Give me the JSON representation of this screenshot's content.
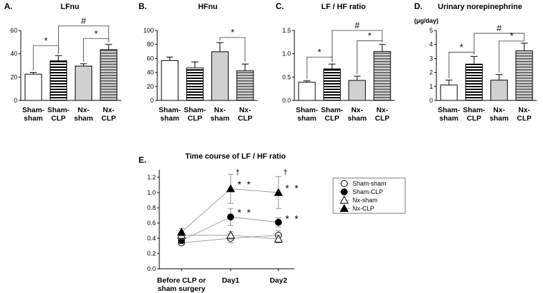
{
  "figure": {
    "units_label": "(μg/day)"
  },
  "chart_data": [
    {
      "panel": "A.",
      "type": "bar",
      "title": "LFnu",
      "categories": [
        [
          "Sham-",
          "sham"
        ],
        [
          "Sham-",
          "CLP"
        ],
        [
          "Nx-",
          "sham"
        ],
        [
          "Nx-",
          "CLP"
        ]
      ],
      "values": [
        22.5,
        34,
        29.5,
        43.5
      ],
      "errors": [
        1.5,
        4.5,
        2,
        4.5
      ],
      "fills": [
        "white",
        "hstripe",
        "gray",
        "hstripe-gray"
      ],
      "ylim": [
        0,
        60
      ],
      "yticks": [
        "0",
        "20",
        "40",
        "60"
      ],
      "ytick_values": [
        0,
        20,
        40,
        60
      ],
      "brackets": [
        {
          "from": 0,
          "to": 1,
          "level": 47,
          "label": "*"
        },
        {
          "from": 2,
          "to": 3,
          "level": 53,
          "label": "*"
        },
        {
          "from": 1,
          "to": 3,
          "level": 64,
          "label": "#"
        }
      ]
    },
    {
      "panel": "B.",
      "type": "bar",
      "title": "HFnu",
      "categories": [
        [
          "Sham-",
          "sham"
        ],
        [
          "Sham-",
          "CLP"
        ],
        [
          "Nx-",
          "sham"
        ],
        [
          "Nx-",
          "CLP"
        ]
      ],
      "values": [
        57,
        46.5,
        69.5,
        42.5
      ],
      "errors": [
        5,
        8.5,
        13,
        9.5
      ],
      "fills": [
        "white",
        "hstripe",
        "gray",
        "hstripe-gray"
      ],
      "ylim": [
        0,
        100
      ],
      "yticks": [
        "0",
        "20",
        "40",
        "60",
        "80",
        "100"
      ],
      "ytick_values": [
        0,
        20,
        40,
        60,
        80,
        100
      ],
      "brackets": [
        {
          "from": 2,
          "to": 3,
          "level": 90,
          "label": "*"
        }
      ]
    },
    {
      "panel": "C.",
      "type": "bar",
      "title": "LF / HF ratio",
      "categories": [
        [
          "Sham-",
          "sham"
        ],
        [
          "Sham-",
          "CLP"
        ],
        [
          "Nx-",
          "sham"
        ],
        [
          "Nx-",
          "CLP"
        ]
      ],
      "values": [
        0.39,
        0.68,
        0.43,
        1.05
      ],
      "errors": [
        0.03,
        0.1,
        0.09,
        0.15
      ],
      "fills": [
        "white",
        "hstripe",
        "gray",
        "hstripe-gray"
      ],
      "ylim": [
        0,
        1.5
      ],
      "yticks": [
        "0.0",
        "0.5",
        "1.0",
        "1.5"
      ],
      "ytick_values": [
        0,
        0.5,
        1.0,
        1.5
      ],
      "brackets": [
        {
          "from": 0,
          "to": 1,
          "level": 0.93,
          "label": "*"
        },
        {
          "from": 2,
          "to": 3,
          "level": 1.28,
          "label": "*"
        },
        {
          "from": 1,
          "to": 3,
          "level": 1.5,
          "label": "#"
        }
      ]
    },
    {
      "panel": "D.",
      "type": "bar",
      "title": "Urinary norepinephrine",
      "ylabel": "(μg/day)",
      "categories": [
        [
          "Sham-",
          "sham"
        ],
        [
          "Sham-",
          "CLP"
        ],
        [
          "Nx-",
          "sham"
        ],
        [
          "Nx-",
          "CLP"
        ]
      ],
      "values": [
        1.1,
        2.6,
        1.45,
        3.55
      ],
      "errors": [
        0.35,
        0.55,
        0.4,
        0.55
      ],
      "fills": [
        "white",
        "hstripe",
        "gray",
        "hstripe-gray"
      ],
      "ylim": [
        0,
        5
      ],
      "yticks": [
        "0",
        "1",
        "2",
        "3",
        "4",
        "5"
      ],
      "ytick_values": [
        0,
        1,
        2,
        3,
        4,
        5
      ],
      "brackets": [
        {
          "from": 0,
          "to": 1,
          "level": 3.45,
          "label": "*"
        },
        {
          "from": 2,
          "to": 3,
          "level": 4.25,
          "label": "*"
        },
        {
          "from": 1,
          "to": 3,
          "level": 4.8,
          "label": "#"
        }
      ]
    },
    {
      "panel": "E.",
      "type": "line",
      "title": "Time course of LF / HF ratio",
      "x": [
        [
          "Before CLP or",
          "sham surgery"
        ],
        [
          "Day1"
        ],
        [
          "Day2"
        ]
      ],
      "ylim": [
        0,
        1.3
      ],
      "yticks": [
        "0.0",
        "0.2",
        "0.4",
        "0.6",
        "0.8",
        "1.0",
        "1.2"
      ],
      "ytick_values": [
        0,
        0.2,
        0.4,
        0.6,
        0.8,
        1.0,
        1.2
      ],
      "series": [
        {
          "name": "Sham-sham",
          "marker": "circle-open",
          "values": [
            0.34,
            0.4,
            0.44
          ],
          "errors": [
            0.03,
            0.06,
            0.06
          ]
        },
        {
          "name": "Sham-CLP",
          "marker": "circle-filled",
          "values": [
            0.37,
            0.68,
            0.61
          ],
          "errors": [
            0.04,
            0.11,
            0.06
          ]
        },
        {
          "name": "Nx-sham",
          "marker": "triangle-open",
          "values": [
            0.44,
            0.44,
            0.39
          ],
          "errors": [
            0.05,
            0.05,
            0.05
          ]
        },
        {
          "name": "Nx-CLP",
          "marker": "triangle-filled",
          "values": [
            0.48,
            1.05,
            1.0
          ],
          "errors": [
            0.05,
            0.19,
            0.21
          ]
        }
      ],
      "annotations": [
        {
          "x": 1,
          "y": 1.27,
          "label": "†"
        },
        {
          "x": 2,
          "y": 1.27,
          "label": "†"
        },
        {
          "x": 1,
          "y": 1.1,
          "label": "* *"
        },
        {
          "x": 2,
          "y": 1.05,
          "label": "* *"
        },
        {
          "x": 1,
          "y": 0.73,
          "label": "* *"
        },
        {
          "x": 2,
          "y": 0.65,
          "label": "* *"
        }
      ]
    }
  ]
}
